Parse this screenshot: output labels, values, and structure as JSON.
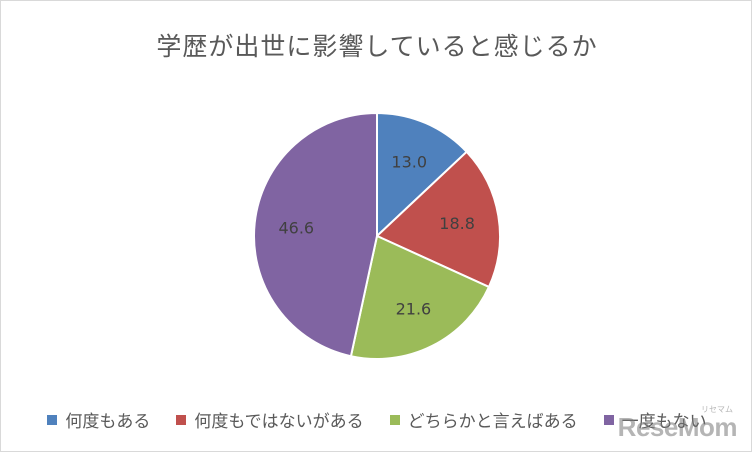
{
  "chart_data": {
    "type": "pie",
    "title": "学歴が出世に影響していると感じるか",
    "categories": [
      "何度もある",
      "何度もではないがある",
      "どちらかと言えばある",
      "一度もない"
    ],
    "values": [
      13.0,
      18.8,
      21.6,
      46.6
    ],
    "value_labels": [
      "13.0",
      "18.8",
      "21.6",
      "46.6"
    ],
    "colors": [
      "#4f81bd",
      "#c0504d",
      "#9bbb59",
      "#8064a2"
    ],
    "legend_position": "bottom",
    "start_angle": "top, clockwise"
  },
  "watermark": {
    "text": "ReseMom",
    "subtext": "リセマム"
  }
}
